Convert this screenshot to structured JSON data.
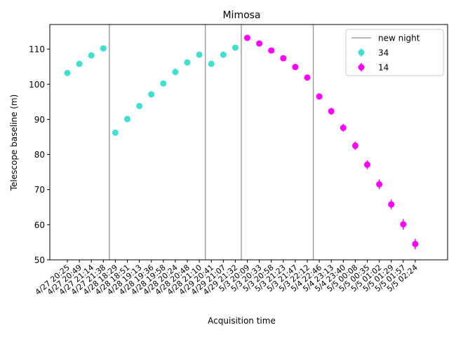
{
  "chart_data": {
    "type": "scatter",
    "title": "Mimosa",
    "xlabel": "Acquisition time",
    "ylabel": "Telescope baseline (m)",
    "ylim": [
      50,
      117
    ],
    "yticks": [
      50,
      60,
      70,
      80,
      90,
      100,
      110
    ],
    "categories": [
      "4/27 20:25",
      "4/27 20:49",
      "4/27 21:14",
      "4/27 21:38",
      "4/28 18:29",
      "4/28 18:51",
      "4/28 19:13",
      "4/28 19:36",
      "4/28 19:58",
      "4/28 20:24",
      "4/28 20:48",
      "4/28 21:10",
      "4/29 20:41",
      "4/29 21:07",
      "4/29 21:32",
      "5/3 20:09",
      "5/3 20:33",
      "5/3 20:58",
      "5/3 21:23",
      "5/3 21:47",
      "5/3 22:12",
      "5/4 22:46",
      "5/4 23:13",
      "5/4 23:40",
      "5/5 00:08",
      "5/5 00:35",
      "5/5 01:02",
      "5/5 01:29",
      "5/5 01:57",
      "5/5 02:24"
    ],
    "new_nights": [
      4,
      12,
      15,
      21
    ],
    "legend": {
      "placement": "top-right",
      "new_night_label": "new night",
      "new_night_color": "#a0a0a0"
    },
    "series": [
      {
        "name": "34",
        "color": "#40e0d0",
        "points": [
          {
            "x": "4/27 20:25",
            "y": 103.2,
            "err": 0.4
          },
          {
            "x": "4/27 20:49",
            "y": 105.8,
            "err": 0.4
          },
          {
            "x": "4/27 21:14",
            "y": 108.2,
            "err": 0.4
          },
          {
            "x": "4/27 21:38",
            "y": 110.2,
            "err": 0.4
          },
          {
            "x": "4/28 18:29",
            "y": 86.2,
            "err": 0.5
          },
          {
            "x": "4/28 18:51",
            "y": 90.1,
            "err": 0.8
          },
          {
            "x": "4/28 19:13",
            "y": 93.8,
            "err": 0.5
          },
          {
            "x": "4/28 19:36",
            "y": 97.1,
            "err": 0.5
          },
          {
            "x": "4/28 19:58",
            "y": 100.2,
            "err": 0.4
          },
          {
            "x": "4/28 20:24",
            "y": 103.5,
            "err": 1.0
          },
          {
            "x": "4/28 20:48",
            "y": 106.2,
            "err": 0.4
          },
          {
            "x": "4/28 21:10",
            "y": 108.4,
            "err": 0.4
          },
          {
            "x": "4/29 20:41",
            "y": 105.8,
            "err": 0.4
          },
          {
            "x": "4/29 21:07",
            "y": 108.4,
            "err": 0.4
          },
          {
            "x": "4/29 21:32",
            "y": 110.4,
            "err": 0.4
          }
        ]
      },
      {
        "name": "14",
        "color": "#ff00ff",
        "points": [
          {
            "x": "5/3 20:09",
            "y": 113.2,
            "err": 0.5
          },
          {
            "x": "5/3 20:33",
            "y": 111.6,
            "err": 0.5
          },
          {
            "x": "5/3 20:58",
            "y": 109.6,
            "err": 0.5
          },
          {
            "x": "5/3 21:23",
            "y": 107.4,
            "err": 0.5
          },
          {
            "x": "5/3 21:47",
            "y": 104.9,
            "err": 0.5
          },
          {
            "x": "5/3 22:12",
            "y": 101.9,
            "err": 0.5
          },
          {
            "x": "5/4 22:46",
            "y": 96.5,
            "err": 0.7
          },
          {
            "x": "5/4 23:13",
            "y": 92.3,
            "err": 1.0
          },
          {
            "x": "5/4 23:40",
            "y": 87.6,
            "err": 1.1
          },
          {
            "x": "5/5 00:08",
            "y": 82.5,
            "err": 1.2
          },
          {
            "x": "5/5 00:35",
            "y": 77.1,
            "err": 1.3
          },
          {
            "x": "5/5 01:02",
            "y": 71.5,
            "err": 1.4
          },
          {
            "x": "5/5 01:29",
            "y": 65.8,
            "err": 1.4
          },
          {
            "x": "5/5 01:57",
            "y": 60.1,
            "err": 1.5
          },
          {
            "x": "5/5 02:24",
            "y": 54.5,
            "err": 1.5
          }
        ]
      }
    ]
  }
}
